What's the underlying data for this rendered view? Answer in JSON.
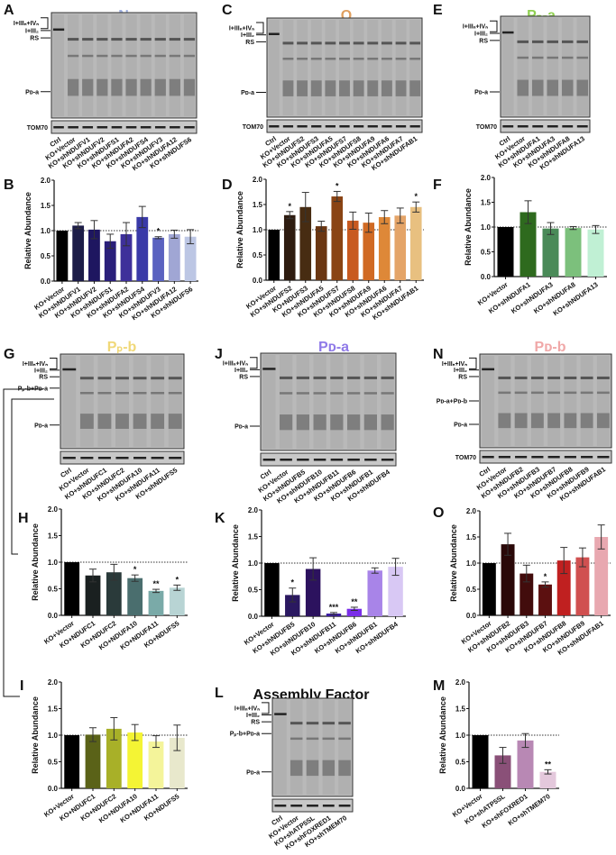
{
  "figure": {
    "band_labels": {
      "supercomplex": "I+IIIₙ+IVₙ",
      "I_III2": "I+III₂",
      "rs": "RS",
      "pd_a": "Pᴅ-a",
      "pp_b_pd_a": "Pₚ-b+Pᴅ-a",
      "pd_a_pd_b": "Pᴅ-a+Pᴅ-b",
      "loading": "TOM70"
    },
    "blots": [
      {
        "id": "A",
        "title": "N",
        "title_color": "#9fb0e0",
        "lanes": [
          "Ctrl",
          "KO+Vector",
          "KO+shNDUFV1",
          "KO+shNDUFV2",
          "KO+shNDUFS1",
          "KO+shNDUFA2",
          "KO+shNDUFS4",
          "KO+shNDUFV3",
          "KO+shNDUFA12",
          "KO+shNDUFS6"
        ],
        "bands": [
          "supercomplex",
          "I_III2",
          "rs",
          "pd_a"
        ],
        "loading": "TOM70"
      },
      {
        "id": "C",
        "title": "Q",
        "title_color": "#e0a060",
        "lanes": [
          "Ctrl",
          "KO+Vector",
          "KO+shNDUFS2",
          "KO+shNDUFS3",
          "KO+shNDUFA5",
          "KO+shNDUFS7",
          "KO+shNDUFS8",
          "KO+shNDUFA9",
          "KO+shNDUFA6",
          "KO+shNDUFA7",
          "KO+shNDUFAB1"
        ],
        "bands": [
          "supercomplex",
          "I_III2",
          "rs",
          "pd_a"
        ],
        "loading": "TOM70"
      },
      {
        "id": "E",
        "title": "Pₚ-a",
        "title_color": "#8fd050",
        "lanes": [
          "Ctrl",
          "KO+Vector",
          "KO+shNDUFA1",
          "KO+shNDUFA3",
          "KO+shNDUFA8",
          "KO+shNDUFA13"
        ],
        "bands": [
          "supercomplex",
          "I_III2",
          "rs",
          "pd_a"
        ],
        "loading": "TOM70"
      },
      {
        "id": "G",
        "title": "Pₚ-b",
        "title_color": "#f0d878",
        "lanes": [
          "Ctrl",
          "KO+Vector",
          "KO+shNDUFC1",
          "KO+shNDUFC2",
          "KO+shNDUFA10",
          "KO+shNDUFA11",
          "KO+shNDUFS5"
        ],
        "bands": [
          "supercomplex",
          "I_III2",
          "rs",
          "pp_b_pd_a",
          "pd_a"
        ],
        "loading": ""
      },
      {
        "id": "J",
        "title": "Pᴅ-a",
        "title_color": "#8f7ae8",
        "lanes": [
          "Ctrl",
          "KO+Vector",
          "KO+shNDUFB5",
          "KO+shNDUFB10",
          "KO+shNDUFB11",
          "KO+shNDUFB6",
          "KO+shNDUFB1",
          "KO+shNDUFB4"
        ],
        "bands": [
          "supercomplex",
          "I_III2",
          "rs",
          "pd_a"
        ],
        "loading": ""
      },
      {
        "id": "N",
        "title": "Pᴅ-b",
        "title_color": "#f0a8a8",
        "lanes": [
          "Ctrl",
          "KO+Vector",
          "KO+shNDUFB2",
          "KO+shNDUFB3",
          "KO+shNDUFB7",
          "KO+shNDUFB8",
          "KO+shNDUFB9",
          "KO+shNDUFAB1"
        ],
        "bands": [
          "supercomplex",
          "I_III2",
          "rs",
          "pd_a_pd_b",
          "pd_a"
        ],
        "loading": "TOM70"
      },
      {
        "id": "L",
        "title": "Assembly Factor",
        "title_color": "#111111",
        "lanes": [
          "Ctrl",
          "KO+Vector",
          "KO+shATP5SL",
          "KO+shFOXRED1",
          "KO+shTMEM70"
        ],
        "bands": [
          "supercomplex",
          "I_III2",
          "rs",
          "pp_b_pd_a",
          "pd_a"
        ],
        "loading": ""
      }
    ]
  },
  "chart_data": [
    {
      "id": "B",
      "type": "bar",
      "title": "",
      "xlabel": "",
      "ylabel": "Relative Abundance",
      "ylim": [
        0,
        2.0
      ],
      "yticks": [
        "0.0",
        "0.5",
        "1.0",
        "1.5",
        "2.0"
      ],
      "reference_line": 1.0,
      "grid": false,
      "categories": [
        "KO+Vector",
        "KO+shNDUFV1",
        "KO+shNDUFV2",
        "KO+shNDUFS1",
        "KO+shNDUFA2",
        "KO+shNDUFS4",
        "KO+shNDUFV3",
        "KO+shNDUFA12",
        "KO+shNDUFS6"
      ],
      "values": [
        1.0,
        1.1,
        1.02,
        0.79,
        0.93,
        1.27,
        0.86,
        0.93,
        0.88
      ],
      "errors": [
        0,
        0.06,
        0.18,
        0.14,
        0.23,
        0.21,
        0.02,
        0.08,
        0.14
      ],
      "significance": [
        "",
        "",
        "",
        "",
        "",
        "",
        "*",
        "",
        ""
      ],
      "colors": [
        "#000000",
        "#1c1c48",
        "#1e1660",
        "#2a1f7a",
        "#3e309a",
        "#3a3aa8",
        "#5a62c0",
        "#a0a6d4",
        "#bcc6e4"
      ]
    },
    {
      "id": "D",
      "type": "bar",
      "title": "",
      "xlabel": "",
      "ylabel": "Relative Abundance",
      "ylim": [
        0,
        2.0
      ],
      "yticks": [
        "0.0",
        "0.5",
        "1.0",
        "1.5",
        "2.0"
      ],
      "reference_line": 1.0,
      "grid": false,
      "categories": [
        "KO+Vector",
        "KO+shNDUFS2",
        "KO+NDUFS3",
        "KO+shNDUFA5",
        "KO+shNDUFS7",
        "KO+shNDUFS8",
        "KO+shNDUFA9",
        "KO+shNDUFA6",
        "KO+shNDUFA7",
        "KO+shNDUFAB1"
      ],
      "values": [
        1.0,
        1.29,
        1.45,
        1.07,
        1.66,
        1.18,
        1.14,
        1.25,
        1.28,
        1.45
      ],
      "errors": [
        0,
        0.07,
        0.29,
        0.1,
        0.1,
        0.17,
        0.19,
        0.13,
        0.15,
        0.1
      ],
      "significance": [
        "",
        "*",
        "",
        "",
        "*",
        "",
        "",
        "",
        "",
        "*"
      ],
      "colors": [
        "#000000",
        "#2e1c10",
        "#472c12",
        "#6a3612",
        "#8a4414",
        "#c85a20",
        "#d06a24",
        "#de8838",
        "#e4a468",
        "#e8c080"
      ]
    },
    {
      "id": "F",
      "type": "bar",
      "title": "",
      "xlabel": "",
      "ylabel": "Relative Abundance",
      "ylim": [
        0,
        2.0
      ],
      "yticks": [
        "0.0",
        "0.5",
        "1.0",
        "1.5",
        "2.0"
      ],
      "reference_line": 1.0,
      "grid": false,
      "categories": [
        "KO+Vector",
        "KO+shNDUFA1",
        "KO+shNDUFA3",
        "KO+shNDUFA8",
        "KO+shNDUFA13"
      ],
      "values": [
        1.0,
        1.3,
        0.97,
        0.98,
        0.95
      ],
      "errors": [
        0,
        0.23,
        0.12,
        0.03,
        0.08
      ],
      "significance": [
        "",
        "",
        "",
        "",
        ""
      ],
      "colors": [
        "#000000",
        "#2e6a1e",
        "#4a8a58",
        "#7cc07c",
        "#c0f0d4"
      ]
    },
    {
      "id": "H",
      "type": "bar",
      "title": "",
      "xlabel": "",
      "ylabel": "Relative Abundance",
      "ylim": [
        0,
        2.0
      ],
      "yticks": [
        "0.0",
        "0.5",
        "1.0",
        "1.5",
        "2.0"
      ],
      "reference_line": 1.0,
      "grid": false,
      "categories": [
        "KO+Vector",
        "KO+NDUFC1",
        "KO+NDUFC2",
        "KO+NDUFA10",
        "KO+NDUFA11",
        "KO+NDUFS5"
      ],
      "values": [
        1.0,
        0.75,
        0.81,
        0.7,
        0.46,
        0.52
      ],
      "errors": [
        0,
        0.12,
        0.15,
        0.06,
        0.03,
        0.05
      ],
      "significance": [
        "",
        "",
        "",
        "*",
        "**",
        "*"
      ],
      "colors": [
        "#000000",
        "#1a2020",
        "#2a3a3a",
        "#4a6e6e",
        "#7aaaa8",
        "#b8d4d4"
      ]
    },
    {
      "id": "I",
      "type": "bar",
      "title": "",
      "xlabel": "",
      "ylabel": "Relative Abundance",
      "ylim": [
        0,
        2.0
      ],
      "yticks": [
        "0.0",
        "0.5",
        "1.0",
        "1.5",
        "2.0"
      ],
      "reference_line": 1.0,
      "grid": false,
      "categories": [
        "KO+Vector",
        "KO+NDUFC1",
        "KO+NDUFC2",
        "KO+NDUFA10",
        "KO+NDUFA11",
        "KO+NDUFS5"
      ],
      "values": [
        1.0,
        1.01,
        1.12,
        1.05,
        0.88,
        0.95
      ],
      "errors": [
        0,
        0.13,
        0.21,
        0.15,
        0.11,
        0.24
      ],
      "significance": [
        "",
        "",
        "",
        "",
        "",
        ""
      ],
      "colors": [
        "#000000",
        "#5a6218",
        "#a8b028",
        "#f4f434",
        "#f4f49a",
        "#e8e8cc"
      ]
    },
    {
      "id": "K",
      "type": "bar",
      "title": "",
      "xlabel": "",
      "ylabel": "Relative Abundance",
      "ylim": [
        0,
        2.0
      ],
      "yticks": [
        "0.0",
        "0.5",
        "1.0",
        "1.5",
        "2.0"
      ],
      "reference_line": 1.0,
      "grid": false,
      "categories": [
        "KO+Vector",
        "KO+shNDUFB5",
        "KO+shNDUFB10",
        "KO+shNDUFB11",
        "KO+shNDUFB6",
        "KO+shNDUFB1",
        "KO+shNDUFB4"
      ],
      "values": [
        1.0,
        0.4,
        0.89,
        0.05,
        0.14,
        0.86,
        0.93
      ],
      "errors": [
        0,
        0.13,
        0.21,
        0.02,
        0.03,
        0.05,
        0.16
      ],
      "significance": [
        "",
        "*",
        "",
        "***",
        "**",
        "",
        ""
      ],
      "colors": [
        "#000000",
        "#2a1860",
        "#2c125e",
        "#3a1aa0",
        "#7a2ee8",
        "#a884e8",
        "#d8c8f4"
      ]
    },
    {
      "id": "O",
      "type": "bar",
      "title": "",
      "xlabel": "",
      "ylabel": "Relative Abundance",
      "ylim": [
        0,
        2.0
      ],
      "yticks": [
        "0.0",
        "0.5",
        "1.0",
        "1.5",
        "2.0"
      ],
      "reference_line": 1.0,
      "grid": false,
      "categories": [
        "KO+Vector",
        "KO+shNDUFB2",
        "KO+shNDUFB3",
        "KO+shNDUFB7",
        "KO+shNDUFB8",
        "KO+shNDUFB9",
        "KO+shNDUFAB1"
      ],
      "values": [
        1.0,
        1.36,
        0.8,
        0.59,
        1.05,
        1.11,
        1.5
      ],
      "errors": [
        0,
        0.21,
        0.16,
        0.05,
        0.25,
        0.18,
        0.23
      ],
      "significance": [
        "",
        "",
        "",
        "*",
        "",
        "",
        ""
      ],
      "colors": [
        "#000000",
        "#2a0808",
        "#420c0c",
        "#5c1010",
        "#c02020",
        "#d05050",
        "#e8a8b0"
      ]
    },
    {
      "id": "M",
      "type": "bar",
      "title": "",
      "xlabel": "",
      "ylabel": "Relative Abundance",
      "ylim": [
        0,
        2.0
      ],
      "yticks": [
        "0.0",
        "0.5",
        "1.0",
        "1.5",
        "2.0"
      ],
      "reference_line": 1.0,
      "grid": false,
      "categories": [
        "KO+Vector",
        "KO+shATP5SL",
        "KO+shFOXRED1",
        "KO+shTMEM70"
      ],
      "values": [
        1.0,
        0.62,
        0.9,
        0.31
      ],
      "errors": [
        0,
        0.15,
        0.13,
        0.04
      ],
      "significance": [
        "",
        "",
        "",
        "**"
      ],
      "colors": [
        "#000000",
        "#8a5078",
        "#b888b4",
        "#e4c8dc"
      ]
    }
  ]
}
